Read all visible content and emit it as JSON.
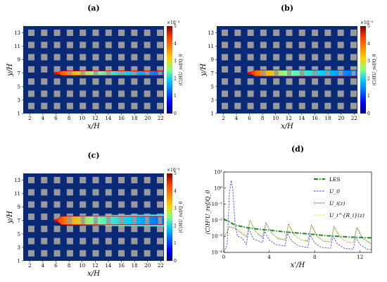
{
  "panels": [
    {
      "id": "a",
      "label": "(a)",
      "stage": "narrow"
    },
    {
      "id": "b",
      "label": "(b)",
      "stage": "medium"
    },
    {
      "id": "c",
      "label": "(c)",
      "stage": "wide"
    }
  ],
  "map": {
    "xlabel": "x/H",
    "ylabel": "y/H",
    "xticks": [
      "2",
      "4",
      "6",
      "8",
      "10",
      "12",
      "14",
      "16",
      "18",
      "20",
      "22"
    ],
    "yticks": [
      "1",
      "3",
      "5",
      "7",
      "9",
      "11",
      "13"
    ],
    "xlim": [
      1,
      22.5
    ],
    "ylim": [
      1,
      14
    ],
    "colorbar": {
      "label": "⟨C⟩HU_ref/Q_0",
      "exponent": "×10⁻³",
      "ticks": [
        "0",
        "1",
        "2",
        "3",
        "4",
        "5"
      ],
      "range": [
        0,
        5
      ],
      "colors": [
        "#00007f",
        "#0000ff",
        "#00c8ff",
        "#7fff7f",
        "#ffd400",
        "#ff3b00",
        "#7f0000"
      ]
    },
    "source": {
      "x": 6,
      "y": 7
    },
    "building_color": "#9a9a9a",
    "background_color": "#0a2a78"
  },
  "chart_data": {
    "type": "line",
    "label": "(d)",
    "xlabel": "x'/H",
    "ylabel": "⟨C⟩H²U_ref/Q_0",
    "xlim": [
      0,
      13
    ],
    "ylim": [
      0.0001,
      10
    ],
    "yscale": "log",
    "xticks": [
      "0",
      "4",
      "8",
      "12"
    ],
    "yticks": [
      "10⁻⁴",
      "10⁻³",
      "10⁻²",
      "10⁻¹",
      "10⁰",
      "10¹"
    ],
    "legend_position": "top-right",
    "series": [
      {
        "name": "LES",
        "style": "dashdot",
        "color": "#1f8c1f",
        "x": [
          0,
          0.5,
          1,
          1.5,
          2,
          3,
          4,
          5,
          6,
          7,
          8,
          9,
          10,
          11,
          12,
          13
        ],
        "y": [
          0.012,
          0.008,
          0.005,
          0.0042,
          0.0035,
          0.0028,
          0.0024,
          0.002,
          0.0017,
          0.0015,
          0.0013,
          0.0011,
          0.001,
          0.0009,
          0.00085,
          0.0008
        ]
      },
      {
        "name": "U_0",
        "style": "dashed",
        "color": "#3a3aff",
        "x": [
          0,
          0.3,
          0.5,
          0.65,
          0.8,
          1,
          1.2,
          1.6,
          2,
          2.2,
          2.6,
          3.4,
          3.6,
          4,
          4.6,
          5.4,
          5.6,
          6,
          6.6,
          7.4,
          7.6,
          8,
          8.6,
          9.4,
          9.6,
          10,
          10.6,
          11.4,
          11.6,
          12,
          12.6,
          13
        ],
        "y": [
          0.0001,
          0.0003,
          0.5,
          3,
          0.8,
          0.005,
          0.001,
          0.0008,
          0.0003,
          0.003,
          0.0007,
          0.0004,
          0.002,
          0.0006,
          0.0003,
          0.00025,
          0.0015,
          0.0005,
          0.00025,
          0.0002,
          0.0012,
          0.0004,
          0.0002,
          0.00018,
          0.001,
          0.00035,
          0.00018,
          0.00016,
          0.0009,
          0.0003,
          0.00016,
          0.00015
        ]
      },
      {
        "name": "U_i(z)",
        "style": "dotted",
        "color": "#222222",
        "x": [
          0,
          0.5,
          1,
          1.6,
          2,
          2.3,
          2.8,
          3.4,
          3.7,
          4.2,
          4.8,
          5.4,
          5.7,
          6.2,
          6.8,
          7.4,
          7.7,
          8.2,
          8.8,
          9.4,
          9.7,
          10.2,
          10.8,
          11.4,
          11.7,
          12.2,
          12.8,
          13
        ],
        "y": [
          0.0008,
          0.004,
          0.003,
          0.0015,
          0.0009,
          0.01,
          0.002,
          0.0008,
          0.007,
          0.0016,
          0.0007,
          0.0006,
          0.006,
          0.0012,
          0.0006,
          0.0005,
          0.005,
          0.001,
          0.0005,
          0.00045,
          0.004,
          0.0009,
          0.00045,
          0.0004,
          0.0035,
          0.0008,
          0.0004,
          0.00035
        ]
      },
      {
        "name": "U_i^{R_i}(z)",
        "style": "dotted",
        "color": "#d8d800",
        "x": [
          0,
          0.5,
          1,
          1.6,
          2,
          2.4,
          2.9,
          3.4,
          3.8,
          4.3,
          4.8,
          5.4,
          5.8,
          6.3,
          6.8,
          7.4,
          7.8,
          8.3,
          8.8,
          9.4,
          9.8,
          10.3,
          10.8,
          11.4,
          11.8,
          12.3,
          12.8,
          13
        ],
        "y": [
          0.002,
          0.006,
          0.004,
          0.0018,
          0.0012,
          0.008,
          0.0018,
          0.001,
          0.006,
          0.0014,
          0.0008,
          0.0007,
          0.005,
          0.0011,
          0.0006,
          0.00055,
          0.004,
          0.0009,
          0.0005,
          0.00045,
          0.0035,
          0.0008,
          0.00045,
          0.0004,
          0.003,
          0.0007,
          0.0004,
          0.00035
        ]
      }
    ]
  }
}
